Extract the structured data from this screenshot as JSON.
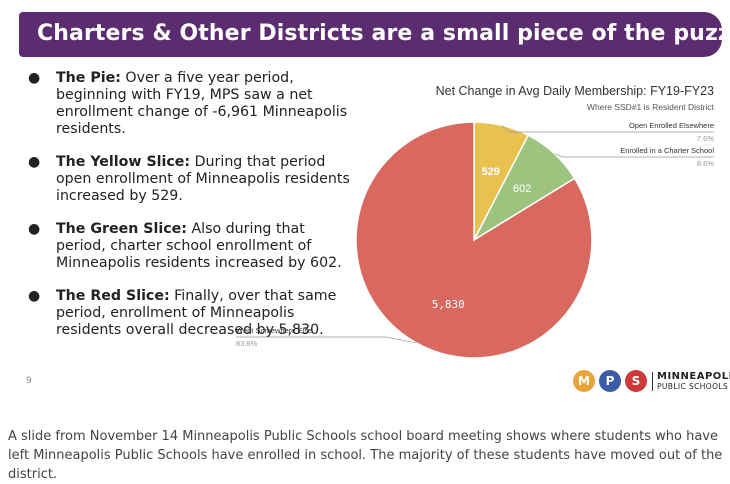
{
  "slide": {
    "title": "Charters & Other Districts are a small piece of the puzzle",
    "page_number": "9",
    "bullets": [
      {
        "heading": "The Pie:",
        "text": "Over a five year period, beginning with FY19, MPS saw a net enrollment change of -6,961 Minneapolis residents."
      },
      {
        "heading": "The Yellow Slice:",
        "text": "During that period open enrollment of Minneapolis residents increased by 529."
      },
      {
        "heading": "The Green Slice:",
        "text": "Also during that period, charter school enrollment of Minneapolis residents increased by 602."
      },
      {
        "heading": "The Red Slice:",
        "text": "Finally, over that same period, enrollment of Minneapolis residents overall decreased by 5,830."
      }
    ],
    "logo": {
      "letters": [
        "M",
        "P",
        "S"
      ],
      "line1": "MINNEAPOLIS",
      "line2": "PUBLIC SCHOOLS"
    }
  },
  "chart_data": {
    "type": "pie",
    "title": "Net Change in Avg Daily Membership: FY19-FY23",
    "subtitle": "Where SSD#1 is Resident District",
    "slices": [
      {
        "label": "Open Enrolled Elsewhere",
        "value": 529,
        "value_label": "529",
        "percent": "7.6%",
        "color": "#e8c14f"
      },
      {
        "label": "Enrolled in a Charter School",
        "value": 602,
        "value_label": "602",
        "percent": "8.6%",
        "color": "#9cc47f"
      },
      {
        "label": "Went Somewhere Else",
        "value": 5830,
        "value_label": "5,830",
        "percent": "83.8%",
        "color": "#d9685f"
      }
    ]
  },
  "caption": "A slide from November 14 Minneapolis Public Schools school board meeting shows where students who have left Minneapolis Public Schools have enrolled in school. The majority of these students have moved out of the district."
}
